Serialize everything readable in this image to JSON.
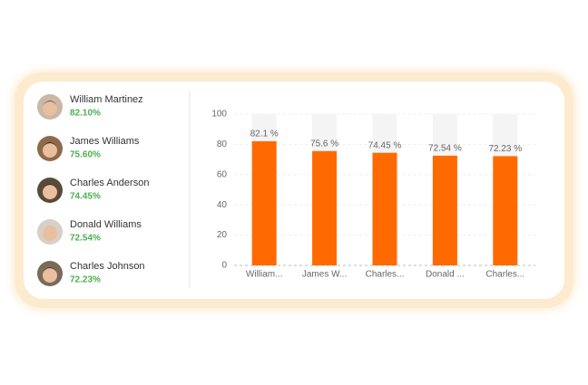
{
  "list": [
    {
      "name": "William Martinez",
      "score": "82.10%"
    },
    {
      "name": "James Williams",
      "score": "75.60%"
    },
    {
      "name": "Charles Anderson",
      "score": "74.45%"
    },
    {
      "name": "Donald Williams",
      "score": "72.54%"
    },
    {
      "name": "Charles Johnson",
      "score": "72.23%"
    }
  ],
  "chart_data": {
    "type": "bar",
    "categories": [
      "William...",
      "James W...",
      "Charles...",
      "Donald ...",
      "Charles..."
    ],
    "values": [
      82.1,
      75.6,
      74.45,
      72.54,
      72.23
    ],
    "value_labels": [
      "82.1 %",
      "75.6 %",
      "74.45 %",
      "72.54 %",
      "72.23 %"
    ],
    "color": "#ff6a00",
    "ylim": [
      0,
      100
    ],
    "yticks": [
      0,
      20,
      40,
      60,
      80,
      100
    ],
    "grid": true
  }
}
